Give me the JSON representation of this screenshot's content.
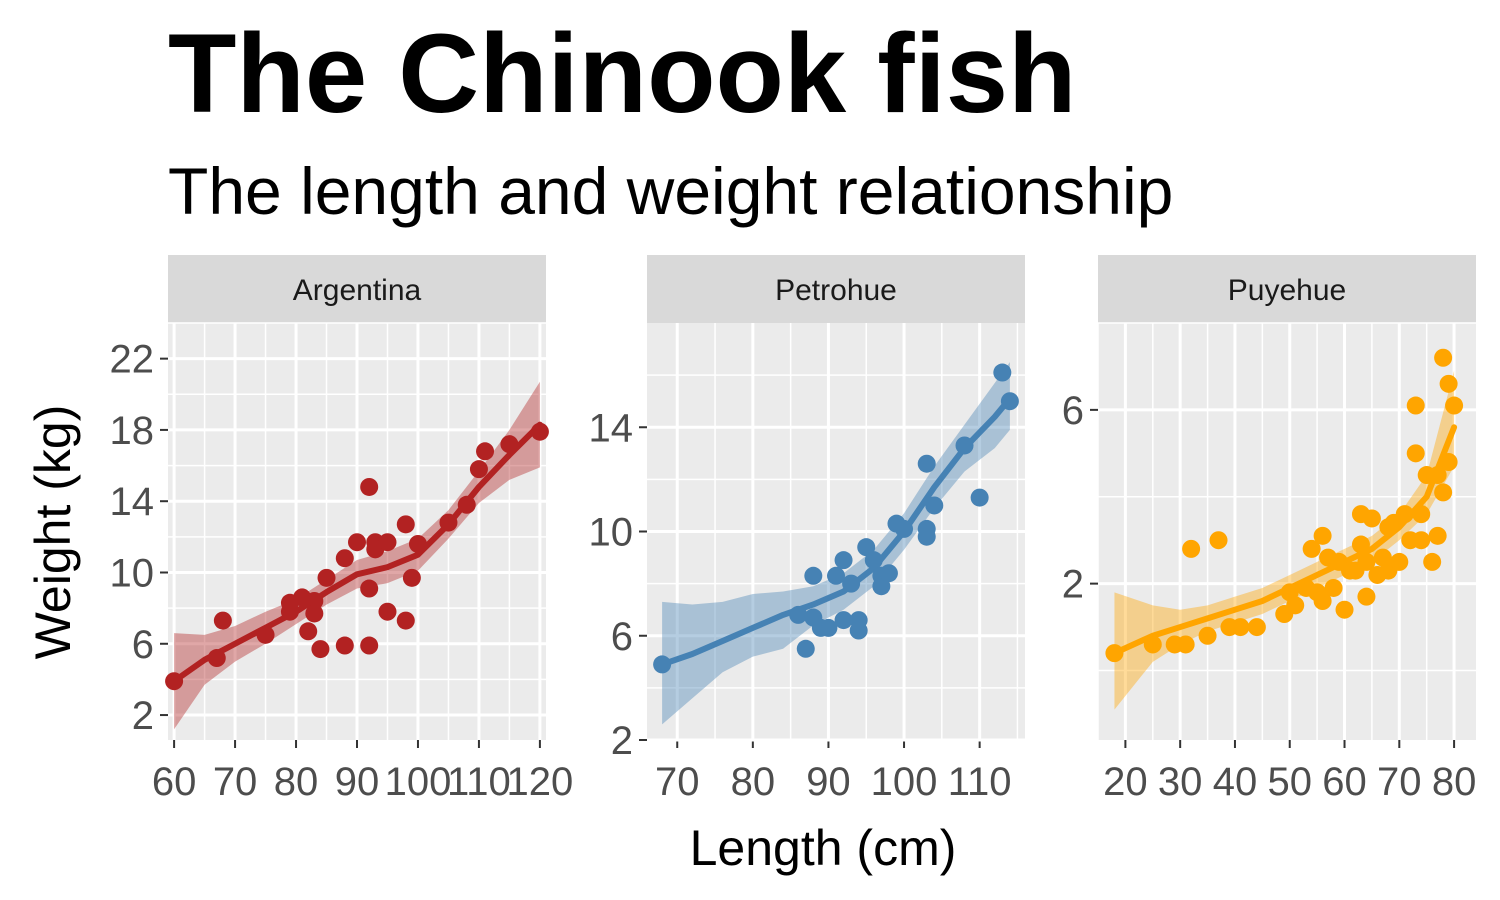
{
  "chart_data": {
    "type": "scatter",
    "title": "The Chinook fish",
    "subtitle": "The length and weight relationship",
    "xlabel": "Length (cm)",
    "ylabel": "Weight (kg)",
    "grid": true,
    "smoother": "loess with confidence band",
    "facets": [
      {
        "name": "Argentina",
        "color": "#b22222",
        "xlim": [
          59,
          121
        ],
        "ylim": [
          0.6,
          24
        ],
        "x_ticks": [
          60,
          70,
          80,
          90,
          100,
          110,
          120
        ],
        "y_ticks": [
          2,
          6,
          10,
          14,
          18,
          22
        ],
        "points": [
          [
            60,
            3.9
          ],
          [
            67,
            5.2
          ],
          [
            68,
            7.3
          ],
          [
            75,
            6.5
          ],
          [
            79,
            8.3
          ],
          [
            79,
            7.8
          ],
          [
            81,
            8.6
          ],
          [
            82,
            6.7
          ],
          [
            83,
            8.4
          ],
          [
            83,
            7.7
          ],
          [
            84,
            5.7
          ],
          [
            85,
            9.7
          ],
          [
            88,
            5.9
          ],
          [
            88,
            10.8
          ],
          [
            90,
            11.7
          ],
          [
            92,
            5.9
          ],
          [
            92,
            14.8
          ],
          [
            92,
            9.1
          ],
          [
            93,
            11.7
          ],
          [
            93,
            11.3
          ],
          [
            95,
            11.7
          ],
          [
            95,
            7.8
          ],
          [
            98,
            12.7
          ],
          [
            98,
            7.3
          ],
          [
            99,
            9.7
          ],
          [
            100,
            11.6
          ],
          [
            105,
            12.8
          ],
          [
            108,
            13.8
          ],
          [
            110,
            15.8
          ],
          [
            111,
            16.8
          ],
          [
            115,
            17.2
          ],
          [
            120,
            17.9
          ]
        ],
        "fit": [
          [
            60,
            3.9
          ],
          [
            65,
            5.1
          ],
          [
            70,
            6.0
          ],
          [
            75,
            6.9
          ],
          [
            80,
            7.8
          ],
          [
            85,
            8.9
          ],
          [
            90,
            9.9
          ],
          [
            95,
            10.3
          ],
          [
            100,
            11.0
          ],
          [
            105,
            12.7
          ],
          [
            110,
            14.8
          ],
          [
            115,
            16.6
          ],
          [
            120,
            18.3
          ]
        ],
        "band": [
          [
            60,
            1.2,
            6.6
          ],
          [
            65,
            3.7,
            6.5
          ],
          [
            70,
            5.0,
            7.0
          ],
          [
            75,
            6.0,
            7.8
          ],
          [
            80,
            7.1,
            8.5
          ],
          [
            85,
            8.2,
            9.6
          ],
          [
            90,
            9.1,
            10.7
          ],
          [
            95,
            9.4,
            11.2
          ],
          [
            100,
            10.1,
            11.9
          ],
          [
            105,
            11.9,
            13.5
          ],
          [
            110,
            13.9,
            15.7
          ],
          [
            115,
            15.2,
            18.0
          ],
          [
            120,
            15.9,
            20.7
          ]
        ]
      },
      {
        "name": "Petrohue",
        "color": "#4682b4",
        "xlim": [
          66,
          116
        ],
        "ylim": [
          2,
          18
        ],
        "x_ticks": [
          70,
          80,
          90,
          100,
          110
        ],
        "y_ticks": [
          2,
          6,
          10,
          14
        ],
        "points": [
          [
            68,
            4.9
          ],
          [
            86,
            6.8
          ],
          [
            87,
            5.5
          ],
          [
            88,
            8.3
          ],
          [
            88,
            6.7
          ],
          [
            89,
            6.3
          ],
          [
            90,
            6.3
          ],
          [
            91,
            8.3
          ],
          [
            92,
            8.9
          ],
          [
            92,
            6.6
          ],
          [
            93,
            8.0
          ],
          [
            94,
            6.6
          ],
          [
            94,
            6.2
          ],
          [
            95,
            9.4
          ],
          [
            96,
            8.9
          ],
          [
            97,
            7.9
          ],
          [
            97,
            8.3
          ],
          [
            98,
            8.4
          ],
          [
            99,
            10.3
          ],
          [
            100,
            10.1
          ],
          [
            103,
            12.6
          ],
          [
            103,
            10.1
          ],
          [
            103,
            9.8
          ],
          [
            104,
            11.0
          ],
          [
            108,
            13.3
          ],
          [
            110,
            11.3
          ],
          [
            113,
            16.1
          ],
          [
            114,
            15.0
          ]
        ],
        "fit": [
          [
            68,
            4.9
          ],
          [
            72,
            5.3
          ],
          [
            76,
            5.8
          ],
          [
            80,
            6.3
          ],
          [
            84,
            6.8
          ],
          [
            88,
            7.2
          ],
          [
            92,
            7.7
          ],
          [
            96,
            8.6
          ],
          [
            100,
            10.0
          ],
          [
            104,
            11.7
          ],
          [
            108,
            13.2
          ],
          [
            112,
            14.4
          ],
          [
            114,
            15.1
          ]
        ],
        "band": [
          [
            68,
            2.6,
            7.3
          ],
          [
            72,
            3.6,
            7.2
          ],
          [
            76,
            4.6,
            7.3
          ],
          [
            80,
            5.2,
            7.6
          ],
          [
            84,
            5.5,
            7.7
          ],
          [
            88,
            6.4,
            7.9
          ],
          [
            92,
            7.0,
            8.4
          ],
          [
            96,
            7.9,
            9.3
          ],
          [
            100,
            9.3,
            10.7
          ],
          [
            104,
            10.9,
            12.5
          ],
          [
            108,
            12.3,
            14.1
          ],
          [
            112,
            13.2,
            15.7
          ],
          [
            114,
            13.9,
            16.5
          ]
        ]
      },
      {
        "name": "Puyehue",
        "color": "#ffa500",
        "xlim": [
          15,
          84
        ],
        "ylim": [
          -1.6,
          8
        ],
        "x_ticks": [
          20,
          30,
          40,
          50,
          60,
          70,
          80
        ],
        "y_ticks": [
          2,
          6
        ],
        "points": [
          [
            18,
            0.4
          ],
          [
            25,
            0.6
          ],
          [
            29,
            0.6
          ],
          [
            31,
            0.6
          ],
          [
            32,
            2.8
          ],
          [
            35,
            0.8
          ],
          [
            37,
            3.0
          ],
          [
            39,
            1.0
          ],
          [
            41,
            1.0
          ],
          [
            44,
            1.0
          ],
          [
            49,
            1.3
          ],
          [
            50,
            1.8
          ],
          [
            51,
            1.5
          ],
          [
            53,
            1.9
          ],
          [
            54,
            2.8
          ],
          [
            55,
            1.8
          ],
          [
            56,
            3.1
          ],
          [
            56,
            1.6
          ],
          [
            57,
            2.6
          ],
          [
            58,
            1.9
          ],
          [
            59,
            2.5
          ],
          [
            60,
            1.4
          ],
          [
            61,
            2.3
          ],
          [
            62,
            2.3
          ],
          [
            63,
            2.9
          ],
          [
            63,
            3.6
          ],
          [
            64,
            1.7
          ],
          [
            64,
            2.5
          ],
          [
            65,
            3.5
          ],
          [
            66,
            2.2
          ],
          [
            67,
            2.6
          ],
          [
            68,
            3.3
          ],
          [
            68,
            2.3
          ],
          [
            69,
            3.4
          ],
          [
            70,
            2.5
          ],
          [
            71,
            3.6
          ],
          [
            72,
            3.0
          ],
          [
            73,
            6.1
          ],
          [
            73,
            5.0
          ],
          [
            74,
            3.6
          ],
          [
            74,
            3.0
          ],
          [
            75,
            4.5
          ],
          [
            76,
            2.5
          ],
          [
            77,
            3.1
          ],
          [
            77,
            4.5
          ],
          [
            78,
            7.2
          ],
          [
            78,
            4.1
          ],
          [
            79,
            6.6
          ],
          [
            79,
            4.8
          ],
          [
            80,
            6.1
          ]
        ],
        "fit": [
          [
            18,
            0.4
          ],
          [
            25,
            0.8
          ],
          [
            30,
            1.0
          ],
          [
            35,
            1.2
          ],
          [
            40,
            1.4
          ],
          [
            45,
            1.6
          ],
          [
            50,
            1.9
          ],
          [
            55,
            2.2
          ],
          [
            60,
            2.5
          ],
          [
            65,
            2.8
          ],
          [
            70,
            3.3
          ],
          [
            75,
            4.0
          ],
          [
            80,
            5.6
          ]
        ],
        "band": [
          [
            18,
            -0.9,
            1.8
          ],
          [
            25,
            0.2,
            1.5
          ],
          [
            30,
            0.6,
            1.4
          ],
          [
            35,
            0.9,
            1.5
          ],
          [
            40,
            1.1,
            1.7
          ],
          [
            45,
            1.3,
            1.9
          ],
          [
            50,
            1.6,
            2.2
          ],
          [
            55,
            1.9,
            2.5
          ],
          [
            60,
            2.2,
            2.8
          ],
          [
            65,
            2.5,
            3.1
          ],
          [
            70,
            3.0,
            3.6
          ],
          [
            75,
            3.6,
            4.5
          ],
          [
            80,
            4.7,
            6.9
          ]
        ]
      }
    ]
  }
}
